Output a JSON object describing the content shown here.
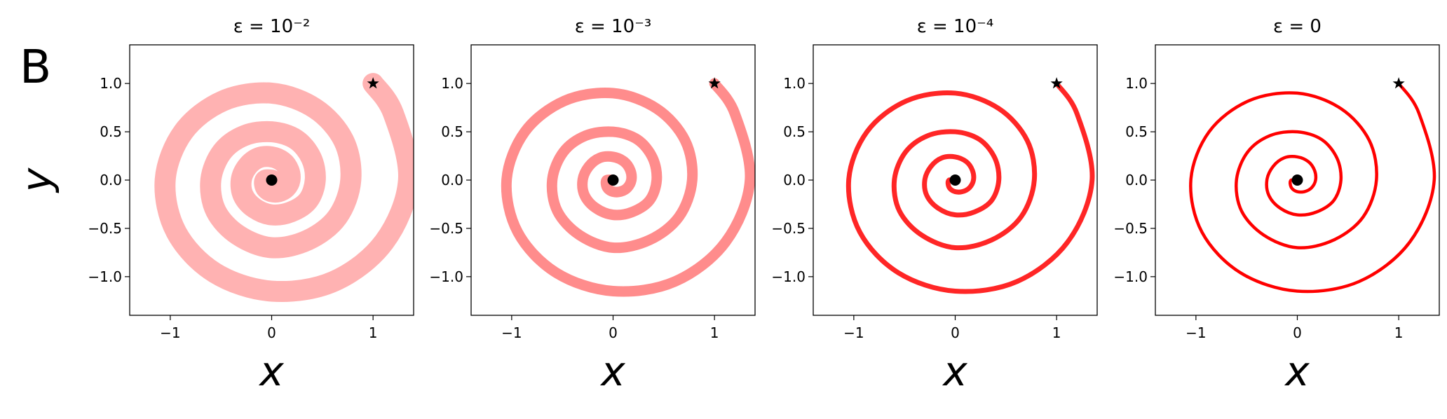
{
  "panel_label": "B",
  "chart_data": [
    {
      "type": "line",
      "title": "ε = 10⁻²",
      "xlabel": "x",
      "ylabel": "y",
      "xlim": [
        -1.4,
        1.4
      ],
      "ylim": [
        -1.4,
        1.4
      ],
      "xticks": [
        {
          "value": -1,
          "label": "−1"
        },
        0,
        1
      ],
      "yticks": [
        {
          "value": -1,
          "label": "−1.0"
        },
        {
          "value": -0.5,
          "label": "−0.5"
        },
        {
          "value": 0,
          "label": "0.0"
        },
        {
          "value": 0.5,
          "label": "0.5"
        },
        {
          "value": 1,
          "label": "1.0"
        }
      ],
      "series": [
        {
          "color": "#ff0000",
          "x": [
            1.0,
            1.2,
            1.35,
            1.11,
            0.61,
            0,
            -0.56,
            -0.94,
            -1.05,
            -0.87,
            -0.48,
            0,
            0.43,
            0.71,
            0.78,
            0.65,
            0.36,
            0,
            -0.33,
            -0.55,
            -0.6,
            -0.49,
            -0.27,
            0,
            0.24,
            0.39,
            0.43,
            0.36,
            0.19,
            0,
            -0.17,
            -0.28,
            -0.3,
            -0.24,
            -0.13,
            0,
            0.11,
            0.17,
            0.18,
            0.14,
            0.07,
            0,
            -0.05,
            -0.07,
            -0.06,
            0
          ],
          "y": [
            1.0,
            0.69,
            0,
            -0.64,
            -1.05,
            -1.15,
            -0.96,
            -0.54,
            0,
            0.5,
            0.82,
            0.9,
            0.74,
            0.41,
            0,
            -0.38,
            -0.62,
            -0.7,
            -0.57,
            -0.32,
            0,
            0.29,
            0.46,
            0.5,
            0.42,
            0.23,
            0,
            -0.21,
            -0.33,
            -0.36,
            -0.29,
            -0.16,
            0,
            0.14,
            0.23,
            0.24,
            0.19,
            0.1,
            0,
            -0.08,
            -0.12,
            -0.12,
            -0.09,
            -0.04,
            0,
            0
          ]
        }
      ],
      "start": {
        "x": 1,
        "y": 1
      },
      "end": {
        "x": 0,
        "y": 0
      }
    },
    {
      "type": "line",
      "title": "ε = 10⁻³",
      "xlabel": "x",
      "xlim": [
        -1.4,
        1.4
      ],
      "ylim": [
        -1.4,
        1.4
      ],
      "xticks": [
        {
          "value": -1,
          "label": "−1"
        },
        0,
        1
      ],
      "yticks": [
        {
          "value": -1,
          "label": "−1.0"
        },
        {
          "value": -0.5,
          "label": "−0.5"
        },
        {
          "value": 0,
          "label": "0.0"
        },
        {
          "value": 0.5,
          "label": "0.5"
        },
        {
          "value": 1,
          "label": "1.0"
        }
      ],
      "series": [
        {
          "color": "#ff0000",
          "x": [
            1.0,
            1.2,
            1.35,
            1.11,
            0.61,
            0,
            -0.56,
            -0.94,
            -1.05,
            -0.87,
            -0.48,
            0,
            0.43,
            0.71,
            0.78,
            0.65,
            0.36,
            0,
            -0.33,
            -0.55,
            -0.6,
            -0.49,
            -0.27,
            0,
            0.24,
            0.39,
            0.43,
            0.36,
            0.19,
            0,
            -0.17,
            -0.28,
            -0.3,
            -0.24,
            -0.13,
            0,
            0.11,
            0.17,
            0.18,
            0.14,
            0.07,
            0,
            -0.05,
            -0.07,
            -0.06,
            0
          ],
          "y": [
            1.0,
            0.69,
            0,
            -0.64,
            -1.05,
            -1.15,
            -0.96,
            -0.54,
            0,
            0.5,
            0.82,
            0.9,
            0.74,
            0.41,
            0,
            -0.38,
            -0.62,
            -0.7,
            -0.57,
            -0.32,
            0,
            0.29,
            0.46,
            0.5,
            0.42,
            0.23,
            0,
            -0.21,
            -0.33,
            -0.36,
            -0.29,
            -0.16,
            0,
            0.14,
            0.23,
            0.24,
            0.19,
            0.1,
            0,
            -0.08,
            -0.12,
            -0.12,
            -0.09,
            -0.04,
            0,
            0
          ]
        }
      ],
      "start": {
        "x": 1,
        "y": 1
      },
      "end": {
        "x": 0,
        "y": 0
      }
    },
    {
      "type": "line",
      "title": "ε = 10⁻⁴",
      "xlabel": "x",
      "xlim": [
        -1.4,
        1.4
      ],
      "ylim": [
        -1.4,
        1.4
      ],
      "xticks": [
        {
          "value": -1,
          "label": "−1"
        },
        0,
        1
      ],
      "yticks": [
        {
          "value": -1,
          "label": "−1.0"
        },
        {
          "value": -0.5,
          "label": "−0.5"
        },
        {
          "value": 0,
          "label": "0.0"
        },
        {
          "value": 0.5,
          "label": "0.5"
        },
        {
          "value": 1,
          "label": "1.0"
        }
      ],
      "series": [
        {
          "color": "#ff0000",
          "x": [
            1.0,
            1.2,
            1.35,
            1.11,
            0.61,
            0,
            -0.56,
            -0.94,
            -1.05,
            -0.87,
            -0.48,
            0,
            0.43,
            0.71,
            0.78,
            0.65,
            0.36,
            0,
            -0.33,
            -0.55,
            -0.6,
            -0.49,
            -0.27,
            0,
            0.24,
            0.39,
            0.43,
            0.36,
            0.19,
            0,
            -0.17,
            -0.28,
            -0.3,
            -0.24,
            -0.13,
            0,
            0.11,
            0.17,
            0.18,
            0.14,
            0.07,
            0,
            -0.05,
            -0.07,
            -0.06,
            0
          ],
          "y": [
            1.0,
            0.69,
            0,
            -0.64,
            -1.05,
            -1.15,
            -0.96,
            -0.54,
            0,
            0.5,
            0.82,
            0.9,
            0.74,
            0.41,
            0,
            -0.38,
            -0.62,
            -0.7,
            -0.57,
            -0.32,
            0,
            0.29,
            0.46,
            0.5,
            0.42,
            0.23,
            0,
            -0.21,
            -0.33,
            -0.36,
            -0.29,
            -0.16,
            0,
            0.14,
            0.23,
            0.24,
            0.19,
            0.1,
            0,
            -0.08,
            -0.12,
            -0.12,
            -0.09,
            -0.04,
            0,
            0
          ]
        }
      ],
      "start": {
        "x": 1,
        "y": 1
      },
      "end": {
        "x": 0,
        "y": 0
      }
    },
    {
      "type": "line",
      "title": "ε = 0",
      "xlabel": "x",
      "xlim": [
        -1.4,
        1.4
      ],
      "ylim": [
        -1.4,
        1.4
      ],
      "xticks": [
        {
          "value": -1,
          "label": "−1"
        },
        0,
        1
      ],
      "yticks": [
        {
          "value": -1,
          "label": "−1.0"
        },
        {
          "value": -0.5,
          "label": "−0.5"
        },
        {
          "value": 0,
          "label": "0.0"
        },
        {
          "value": 0.5,
          "label": "0.5"
        },
        {
          "value": 1,
          "label": "1.0"
        }
      ],
      "series": [
        {
          "color": "#ff0000",
          "x": [
            1.0,
            1.2,
            1.35,
            1.11,
            0.61,
            0,
            -0.56,
            -0.94,
            -1.05,
            -0.87,
            -0.48,
            0,
            0.43,
            0.71,
            0.78,
            0.65,
            0.36,
            0,
            -0.33,
            -0.55,
            -0.6,
            -0.49,
            -0.27,
            0,
            0.24,
            0.39,
            0.43,
            0.36,
            0.19,
            0,
            -0.17,
            -0.28,
            -0.3,
            -0.24,
            -0.13,
            0,
            0.11,
            0.17,
            0.18,
            0.14,
            0.07,
            0,
            -0.05,
            -0.07,
            -0.06,
            0
          ],
          "y": [
            1.0,
            0.69,
            0,
            -0.64,
            -1.05,
            -1.15,
            -0.96,
            -0.54,
            0,
            0.5,
            0.82,
            0.9,
            0.74,
            0.41,
            0,
            -0.38,
            -0.62,
            -0.7,
            -0.57,
            -0.32,
            0,
            0.29,
            0.46,
            0.5,
            0.42,
            0.23,
            0,
            -0.21,
            -0.33,
            -0.36,
            -0.29,
            -0.16,
            0,
            0.14,
            0.23,
            0.24,
            0.19,
            0.1,
            0,
            -0.08,
            -0.12,
            -0.12,
            -0.09,
            -0.04,
            0,
            0
          ]
        }
      ],
      "start": {
        "x": 1,
        "y": 1
      },
      "end": {
        "x": 0,
        "y": 0
      }
    }
  ]
}
